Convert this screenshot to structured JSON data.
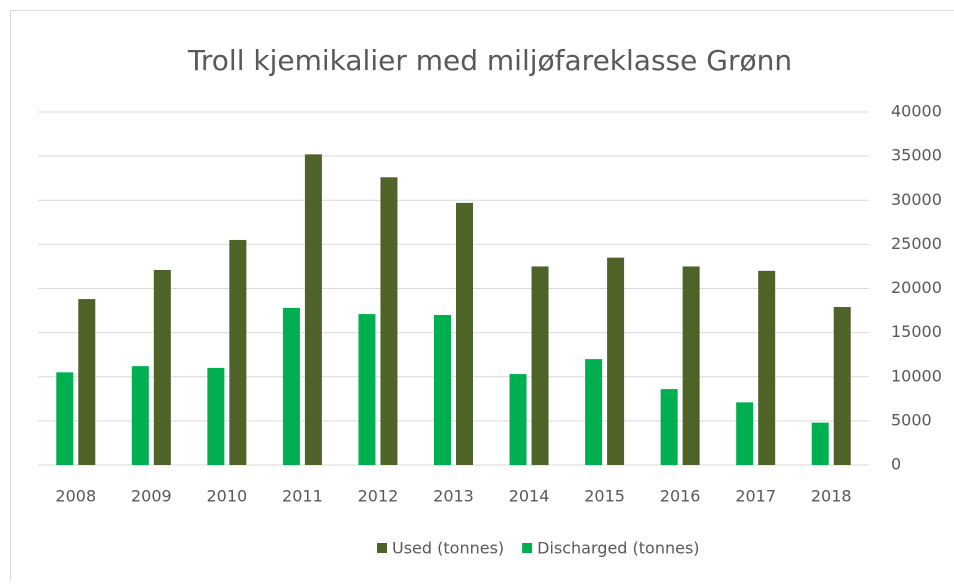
{
  "chart_data": {
    "type": "bar",
    "title": "Troll kjemikalier med miljøfareklasse Grønn",
    "categories": [
      "2008",
      "2009",
      "2010",
      "2011",
      "2012",
      "2013",
      "2014",
      "2015",
      "2016",
      "2017",
      "2018"
    ],
    "series": [
      {
        "name": "Used (tonnes)",
        "color": "#4f6228",
        "values": [
          18800,
          22100,
          25500,
          35200,
          32600,
          29700,
          22500,
          23500,
          22500,
          22000,
          17900
        ]
      },
      {
        "name": "Discharged (tonnes)",
        "color": "#00b050",
        "values": [
          10500,
          11200,
          11000,
          17800,
          17100,
          17000,
          10300,
          12000,
          8600,
          7100,
          4800
        ]
      }
    ],
    "ylim": [
      0,
      40000
    ],
    "yticks": [
      0,
      5000,
      10000,
      15000,
      20000,
      25000,
      30000,
      35000,
      40000
    ],
    "grid": true,
    "y_axis_side": "right",
    "legend": "bottom"
  }
}
